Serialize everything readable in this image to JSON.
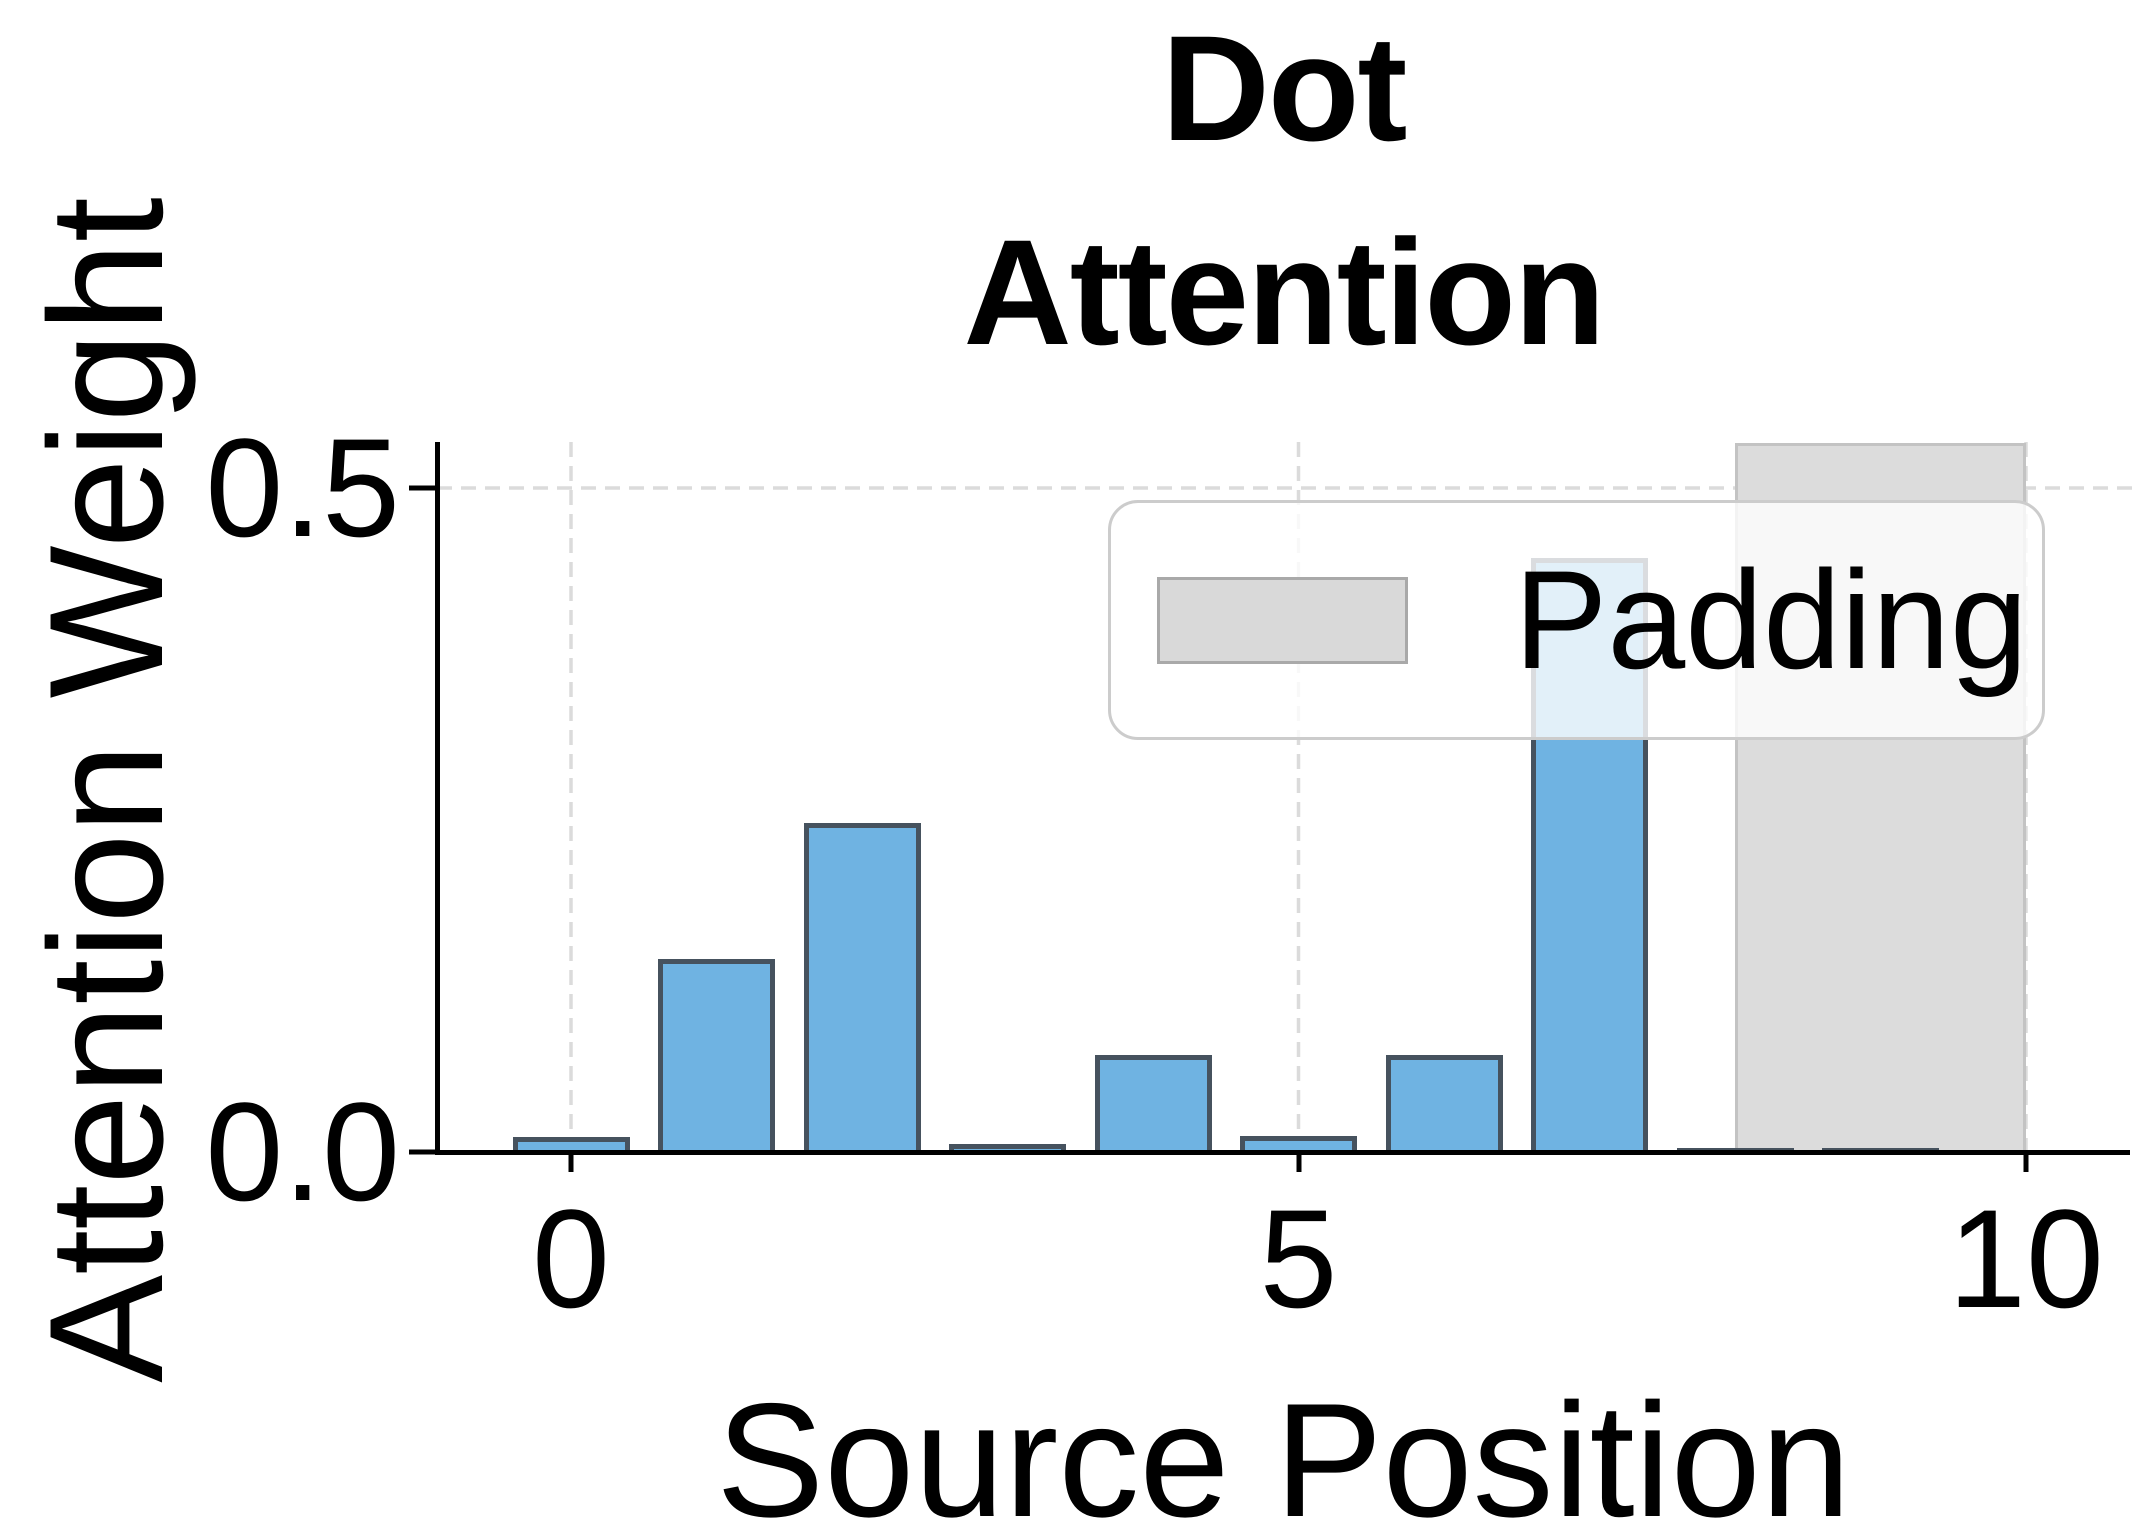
{
  "figure": {
    "title_line1": "Dot",
    "title_line2": "Attention"
  },
  "axes": {
    "xlabel": "Source Position",
    "ylabel": "Attention Weight",
    "xticks": [
      {
        "label": "0",
        "value": 0
      },
      {
        "label": "5",
        "value": 5
      },
      {
        "label": "10",
        "value": 10
      }
    ],
    "yticks": [
      {
        "label": "0.0",
        "value": 0.0
      },
      {
        "label": "0.5",
        "value": 0.5
      }
    ]
  },
  "legend": {
    "label": "Padding"
  },
  "colors": {
    "bar_fill": "#6FB3E2",
    "bar_edge": "#46525E",
    "padding_fill": "#DCDCDC",
    "padding_edge": "#C3C3C3",
    "gridline": "#DBDBDB",
    "axis": "#000000",
    "legend_border": "#CCCCCC",
    "legend_bg": "rgba(255,255,255,0.8)",
    "legend_swatch_fill": "#D9D9D9",
    "legend_swatch_border": "#A9A9A9",
    "text": "#000000"
  },
  "chart_data": {
    "type": "bar",
    "title": "Dot Attention",
    "xlabel": "Source Position",
    "ylabel": "Attention Weight",
    "x": [
      0,
      1,
      2,
      3,
      4,
      5,
      6,
      7,
      8,
      9
    ],
    "values": [
      0.011,
      0.145,
      0.248,
      0.006,
      0.073,
      0.012,
      0.073,
      0.447,
      0.003,
      0.003
    ],
    "bar_width": 0.8,
    "series_name": "Attention Weight",
    "padding_span": {
      "x_start": 8,
      "x_end": 10,
      "label": "Padding"
    },
    "xlim": [
      -0.92,
      10.72
    ],
    "ylim": [
      0,
      0.535
    ],
    "xtick_values": [
      0,
      5,
      10
    ],
    "ytick_values": [
      0.0,
      0.5
    ],
    "grid": {
      "vertical_at": [
        0,
        5,
        10
      ],
      "horizontal_at": [
        0.5
      ],
      "style": "dashed"
    },
    "legend_position": "upper right"
  }
}
